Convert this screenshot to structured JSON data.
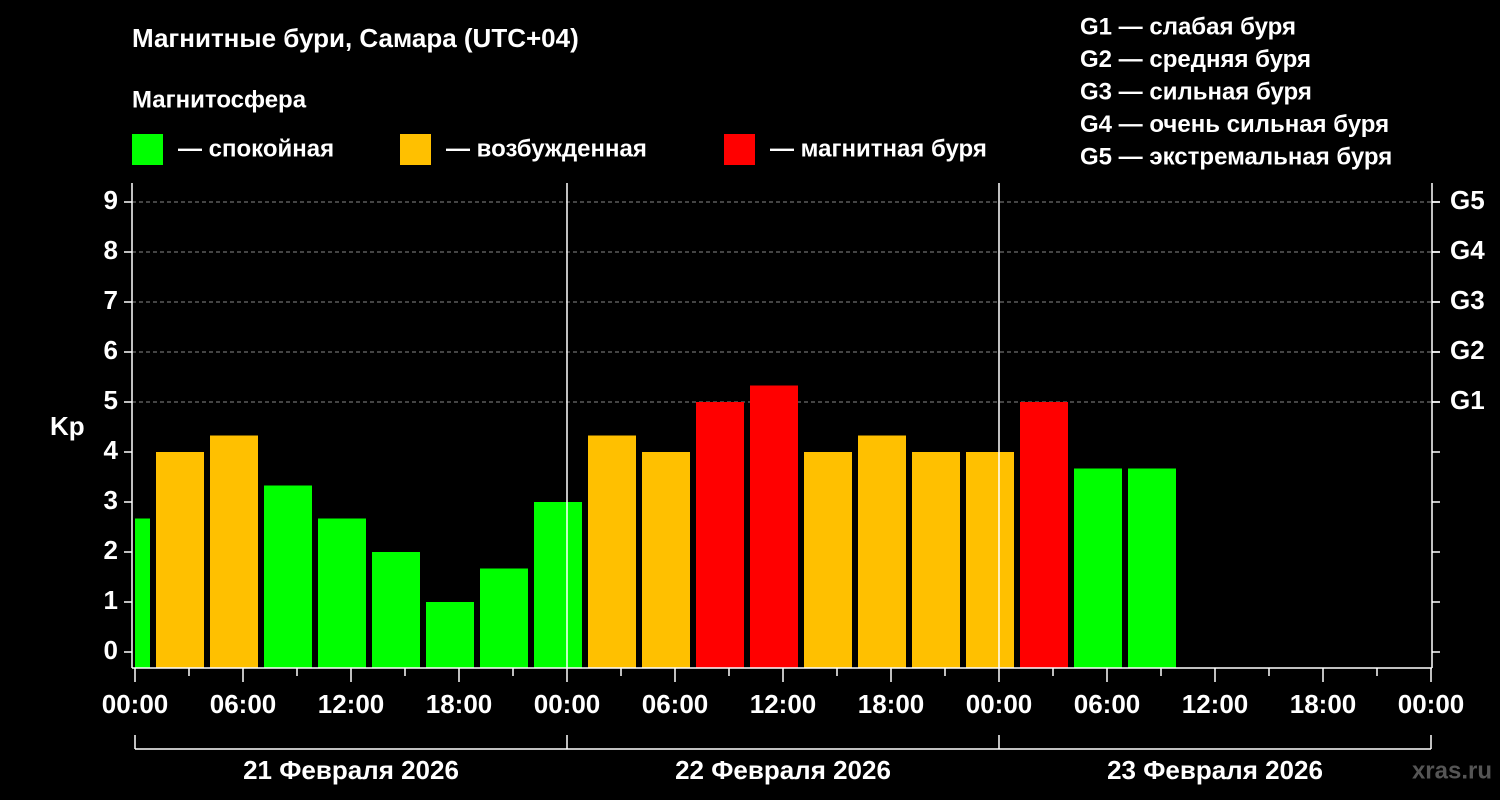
{
  "chart_data": {
    "type": "bar",
    "title": "Магнитные бури, Самара (UTC+04)",
    "legend_title": "Магнитосфера",
    "legend": [
      {
        "name": "— спокойная",
        "color": "#00ff00"
      },
      {
        "name": "— возбужденная",
        "color": "#ffc000"
      },
      {
        "name": "— магнитная буря",
        "color": "#ff0000"
      }
    ],
    "storm_scale": [
      "G1 — слабая буря",
      "G2 — средняя буря",
      "G3 — сильная буря",
      "G4 — очень сильная буря",
      "G5 — экстремальная буря"
    ],
    "y_label": "Kp",
    "bar_width": 3,
    "x": [
      -0.5,
      2.5,
      5.5,
      8.5,
      11.5,
      14.5,
      17.5,
      20.5,
      23.5,
      26.5,
      29.5,
      32.5,
      35.5,
      38.5,
      41.5,
      44.5,
      47.5,
      50.5,
      53.5,
      56.5
    ],
    "values": [
      2.67,
      4,
      4.33,
      3.33,
      2.67,
      2,
      1,
      1.67,
      3,
      4.33,
      4,
      5,
      5.33,
      4,
      4.33,
      4,
      4,
      5,
      3.67,
      3.67
    ],
    "colors": [
      "#00ff00",
      "#ffc000",
      "#ffc000",
      "#00ff00",
      "#00ff00",
      "#00ff00",
      "#00ff00",
      "#00ff00",
      "#00ff00",
      "#ffc000",
      "#ffc000",
      "#ff0000",
      "#ff0000",
      "#ffc000",
      "#ffc000",
      "#ffc000",
      "#ffc000",
      "#ff0000",
      "#00ff00",
      "#00ff00"
    ],
    "xlim": [
      0,
      72
    ],
    "xticks": [
      {
        "value": 0,
        "label": "00:00"
      },
      {
        "value": 6,
        "label": "06:00"
      },
      {
        "value": 12,
        "label": "12:00"
      },
      {
        "value": 18,
        "label": "18:00"
      },
      {
        "value": 24,
        "label": "00:00"
      },
      {
        "value": 30,
        "label": "06:00"
      },
      {
        "value": 36,
        "label": "12:00"
      },
      {
        "value": 42,
        "label": "18:00"
      },
      {
        "value": 48,
        "label": "00:00"
      },
      {
        "value": 54,
        "label": "06:00"
      },
      {
        "value": 60,
        "label": "12:00"
      },
      {
        "value": 66,
        "label": "18:00"
      },
      {
        "value": 72,
        "label": "00:00"
      }
    ],
    "days": [
      "21 Февраля 2026",
      "22 Февраля 2026",
      "23 Февраля 2026"
    ],
    "ylim": [
      -0.32,
      9.38
    ],
    "yticks": [
      0,
      1,
      2,
      3,
      4,
      5,
      6,
      7,
      8,
      9
    ],
    "y2lim": [
      -0.32,
      9.38
    ],
    "y2ticks": [
      {
        "value": 5,
        "label": "G1"
      },
      {
        "value": 6,
        "label": "G2"
      },
      {
        "value": 7,
        "label": "G3"
      },
      {
        "value": 8,
        "label": "G4"
      },
      {
        "value": 9,
        "label": "G5"
      }
    ],
    "grid": true,
    "watermark": "xras.ru"
  }
}
